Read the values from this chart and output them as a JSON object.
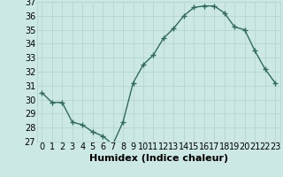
{
  "x": [
    0,
    1,
    2,
    3,
    4,
    5,
    6,
    7,
    8,
    9,
    10,
    11,
    12,
    13,
    14,
    15,
    16,
    17,
    18,
    19,
    20,
    21,
    22,
    23
  ],
  "y": [
    30.5,
    29.8,
    29.8,
    28.4,
    28.2,
    27.7,
    27.4,
    26.8,
    28.4,
    31.2,
    32.5,
    33.2,
    34.4,
    35.1,
    36.0,
    36.6,
    36.7,
    36.7,
    36.2,
    35.2,
    35.0,
    33.5,
    32.2,
    31.2
  ],
  "xlabel": "Humidex (Indice chaleur)",
  "ylim": [
    27,
    37
  ],
  "xlim": [
    -0.5,
    23.5
  ],
  "yticks": [
    27,
    28,
    29,
    30,
    31,
    32,
    33,
    34,
    35,
    36,
    37
  ],
  "xticks": [
    0,
    1,
    2,
    3,
    4,
    5,
    6,
    7,
    8,
    9,
    10,
    11,
    12,
    13,
    14,
    15,
    16,
    17,
    18,
    19,
    20,
    21,
    22,
    23
  ],
  "line_color": "#2e6b5e",
  "marker": "+",
  "bg_color": "#cce8e4",
  "grid_color": "#b8d4d0",
  "xlabel_fontsize": 8,
  "tick_fontsize": 7,
  "marker_size": 4,
  "line_width": 1.0,
  "marker_edge_width": 1.0
}
